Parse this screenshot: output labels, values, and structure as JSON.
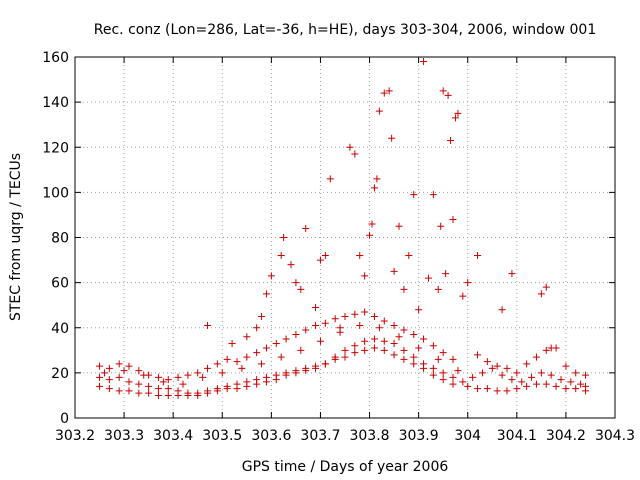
{
  "chart_data": {
    "type": "scatter",
    "title": "Rec. conz (Lon=286, Lat=-36, h=HE), days 303-304, 2006, window 001",
    "xlabel": "GPS time / Days of year 2006",
    "ylabel": "STEC from uqrg / TECUs",
    "xlim": [
      303.2,
      304.3
    ],
    "ylim": [
      0,
      160
    ],
    "x_ticks": [
      "303.2",
      "303.3",
      "303.4",
      "303.5",
      "303.6",
      "303.7",
      "303.8",
      "303.9",
      "304",
      "304.1",
      "304.2",
      "304.3"
    ],
    "y_ticks": [
      "0",
      "20",
      "40",
      "60",
      "80",
      "100",
      "120",
      "140",
      "160"
    ],
    "grid": true,
    "marker": "plus",
    "color": "#cc0000",
    "points": [
      [
        303.25,
        18
      ],
      [
        303.27,
        17
      ],
      [
        303.29,
        18
      ],
      [
        303.31,
        16
      ],
      [
        303.33,
        15
      ],
      [
        303.35,
        14
      ],
      [
        303.37,
        13
      ],
      [
        303.39,
        13
      ],
      [
        303.41,
        12
      ],
      [
        303.43,
        11
      ],
      [
        303.45,
        10
      ],
      [
        303.47,
        11
      ],
      [
        303.49,
        12
      ],
      [
        303.51,
        13
      ],
      [
        303.53,
        13
      ],
      [
        303.55,
        14
      ],
      [
        303.57,
        15
      ],
      [
        303.59,
        16
      ],
      [
        303.61,
        17
      ],
      [
        303.63,
        19
      ],
      [
        303.65,
        20
      ],
      [
        303.67,
        21
      ],
      [
        303.69,
        22
      ],
      [
        303.71,
        24
      ],
      [
        303.73,
        27
      ],
      [
        303.75,
        30
      ],
      [
        303.77,
        32
      ],
      [
        303.79,
        34
      ],
      [
        303.81,
        35
      ],
      [
        303.83,
        34
      ],
      [
        303.85,
        33
      ],
      [
        303.87,
        30
      ],
      [
        303.89,
        27
      ],
      [
        303.91,
        24
      ],
      [
        303.93,
        22
      ],
      [
        303.95,
        20
      ],
      [
        303.97,
        18
      ],
      [
        303.99,
        16
      ],
      [
        303.25,
        23
      ],
      [
        303.27,
        22
      ],
      [
        303.29,
        24
      ],
      [
        303.31,
        23
      ],
      [
        303.33,
        21
      ],
      [
        303.35,
        19
      ],
      [
        303.37,
        18
      ],
      [
        303.39,
        17
      ],
      [
        303.41,
        18
      ],
      [
        303.43,
        19
      ],
      [
        303.45,
        20
      ],
      [
        303.47,
        22
      ],
      [
        303.49,
        24
      ],
      [
        303.51,
        26
      ],
      [
        303.53,
        25
      ],
      [
        303.55,
        27
      ],
      [
        303.57,
        29
      ],
      [
        303.59,
        31
      ],
      [
        303.61,
        33
      ],
      [
        303.63,
        35
      ],
      [
        303.65,
        37
      ],
      [
        303.67,
        39
      ],
      [
        303.69,
        41
      ],
      [
        303.71,
        42
      ],
      [
        303.73,
        44
      ],
      [
        303.75,
        45
      ],
      [
        303.77,
        46
      ],
      [
        303.79,
        47
      ],
      [
        303.81,
        45
      ],
      [
        303.83,
        43
      ],
      [
        303.85,
        41
      ],
      [
        303.87,
        39
      ],
      [
        303.89,
        37
      ],
      [
        303.91,
        35
      ],
      [
        303.93,
        32
      ],
      [
        303.95,
        29
      ],
      [
        303.97,
        26
      ],
      [
        303.25,
        14
      ],
      [
        303.27,
        13
      ],
      [
        303.29,
        12
      ],
      [
        303.31,
        12
      ],
      [
        303.33,
        11
      ],
      [
        303.35,
        11
      ],
      [
        303.37,
        10
      ],
      [
        303.39,
        10
      ],
      [
        303.41,
        10
      ],
      [
        303.43,
        10
      ],
      [
        303.45,
        11
      ],
      [
        303.47,
        12
      ],
      [
        303.49,
        13
      ],
      [
        303.51,
        14
      ],
      [
        303.53,
        15
      ],
      [
        303.55,
        16
      ],
      [
        303.57,
        17
      ],
      [
        303.59,
        18
      ],
      [
        303.61,
        19
      ],
      [
        303.63,
        20
      ],
      [
        303.65,
        21
      ],
      [
        303.67,
        22
      ],
      [
        303.69,
        23
      ],
      [
        303.71,
        24
      ],
      [
        303.73,
        26
      ],
      [
        303.75,
        27
      ],
      [
        303.77,
        29
      ],
      [
        303.79,
        30
      ],
      [
        303.81,
        31
      ],
      [
        303.83,
        30
      ],
      [
        303.85,
        28
      ],
      [
        303.87,
        26
      ],
      [
        303.89,
        24
      ],
      [
        303.91,
        22
      ],
      [
        303.93,
        19
      ],
      [
        303.95,
        17
      ],
      [
        303.97,
        15
      ],
      [
        303.26,
        20
      ],
      [
        303.3,
        21
      ],
      [
        303.34,
        19
      ],
      [
        303.38,
        16
      ],
      [
        303.42,
        15
      ],
      [
        303.46,
        18
      ],
      [
        303.5,
        20
      ],
      [
        303.54,
        22
      ],
      [
        303.58,
        24
      ],
      [
        303.62,
        27
      ],
      [
        303.66,
        30
      ],
      [
        303.7,
        34
      ],
      [
        303.74,
        38
      ],
      [
        303.78,
        41
      ],
      [
        303.82,
        40
      ],
      [
        303.86,
        36
      ],
      [
        303.9,
        31
      ],
      [
        303.94,
        26
      ],
      [
        303.98,
        21
      ],
      [
        303.47,
        41
      ],
      [
        303.52,
        33
      ],
      [
        303.55,
        36
      ],
      [
        303.57,
        40
      ],
      [
        303.58,
        45
      ],
      [
        303.59,
        55
      ],
      [
        303.6,
        63
      ],
      [
        303.62,
        72
      ],
      [
        303.625,
        80
      ],
      [
        303.64,
        68
      ],
      [
        303.65,
        60
      ],
      [
        303.66,
        57
      ],
      [
        303.67,
        84
      ],
      [
        303.69,
        49
      ],
      [
        303.7,
        70
      ],
      [
        303.71,
        72
      ],
      [
        303.72,
        106
      ],
      [
        303.74,
        40
      ],
      [
        303.76,
        120
      ],
      [
        303.77,
        117
      ],
      [
        303.78,
        72
      ],
      [
        303.79,
        63
      ],
      [
        303.8,
        81
      ],
      [
        303.805,
        86
      ],
      [
        303.81,
        102
      ],
      [
        303.815,
        106
      ],
      [
        303.82,
        136
      ],
      [
        303.83,
        144
      ],
      [
        303.84,
        145
      ],
      [
        303.845,
        124
      ],
      [
        303.85,
        65
      ],
      [
        303.86,
        85
      ],
      [
        303.87,
        57
      ],
      [
        303.88,
        72
      ],
      [
        303.89,
        99
      ],
      [
        303.9,
        48
      ],
      [
        303.91,
        158
      ],
      [
        303.92,
        62
      ],
      [
        303.93,
        99
      ],
      [
        303.94,
        57
      ],
      [
        303.945,
        85
      ],
      [
        303.95,
        145
      ],
      [
        303.955,
        64
      ],
      [
        303.96,
        143
      ],
      [
        303.965,
        123
      ],
      [
        303.97,
        88
      ],
      [
        303.975,
        133
      ],
      [
        303.98,
        135
      ],
      [
        303.99,
        54
      ],
      [
        304.0,
        60
      ],
      [
        304.02,
        72
      ],
      [
        304.07,
        48
      ],
      [
        304.09,
        64
      ],
      [
        304.15,
        55
      ],
      [
        304.16,
        58
      ],
      [
        304.0,
        14
      ],
      [
        304.02,
        13
      ],
      [
        304.04,
        13
      ],
      [
        304.06,
        12
      ],
      [
        304.08,
        12
      ],
      [
        304.1,
        13
      ],
      [
        304.12,
        14
      ],
      [
        304.14,
        15
      ],
      [
        304.16,
        15
      ],
      [
        304.18,
        14
      ],
      [
        304.2,
        13
      ],
      [
        304.22,
        13
      ],
      [
        304.24,
        12
      ],
      [
        304.01,
        18
      ],
      [
        304.03,
        20
      ],
      [
        304.05,
        22
      ],
      [
        304.07,
        19
      ],
      [
        304.09,
        17
      ],
      [
        304.11,
        16
      ],
      [
        304.13,
        18
      ],
      [
        304.15,
        20
      ],
      [
        304.17,
        19
      ],
      [
        304.19,
        17
      ],
      [
        304.21,
        16
      ],
      [
        304.23,
        15
      ],
      [
        304.24,
        14
      ],
      [
        304.02,
        28
      ],
      [
        304.04,
        25
      ],
      [
        304.06,
        23
      ],
      [
        304.08,
        22
      ],
      [
        304.1,
        20
      ],
      [
        304.12,
        24
      ],
      [
        304.14,
        27
      ],
      [
        304.16,
        30
      ],
      [
        304.17,
        31
      ],
      [
        304.18,
        31
      ],
      [
        304.2,
        23
      ],
      [
        304.22,
        20
      ],
      [
        304.24,
        19
      ]
    ]
  }
}
